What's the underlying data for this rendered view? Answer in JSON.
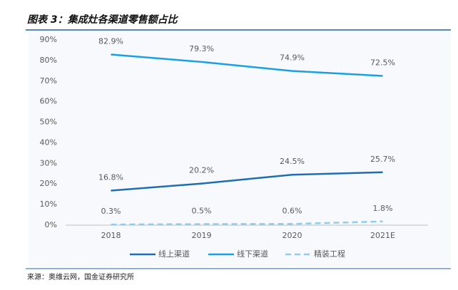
{
  "chart_data": {
    "type": "line",
    "title": "图表 3：集成灶各渠道零售额占比",
    "source": "来源：奥维云网，国金证券研究所",
    "categories": [
      "2018",
      "2019",
      "2020",
      "2021E"
    ],
    "series": [
      {
        "name": "线上渠道",
        "color": "#1f6db3",
        "dash": false,
        "values": [
          16.8,
          20.2,
          24.5,
          25.7
        ],
        "value_labels": [
          "16.8%",
          "20.2%",
          "24.5%",
          "25.7%"
        ]
      },
      {
        "name": "线下渠道",
        "color": "#1aa0e2",
        "dash": false,
        "values": [
          82.9,
          79.3,
          74.9,
          72.5
        ],
        "value_labels": [
          "82.9%",
          "79.3%",
          "74.9%",
          "72.5%"
        ]
      },
      {
        "name": "精装工程",
        "color": "#8ecdf0",
        "dash": true,
        "values": [
          0.3,
          0.5,
          0.6,
          1.8
        ],
        "value_labels": [
          "0.3%",
          "0.5%",
          "0.6%",
          "1.8%"
        ]
      }
    ],
    "ylim": [
      0,
      90
    ],
    "yticks": [
      {
        "value": 0,
        "label": "0%"
      },
      {
        "value": 10,
        "label": "10%"
      },
      {
        "value": 20,
        "label": "20%"
      },
      {
        "value": 30,
        "label": "30%"
      },
      {
        "value": 40,
        "label": "40%"
      },
      {
        "value": 50,
        "label": "50%"
      },
      {
        "value": 60,
        "label": "60%"
      },
      {
        "value": 70,
        "label": "70%"
      },
      {
        "value": 80,
        "label": "80%"
      },
      {
        "value": 90,
        "label": "90%"
      }
    ],
    "grid": false,
    "legend": "bottom"
  }
}
